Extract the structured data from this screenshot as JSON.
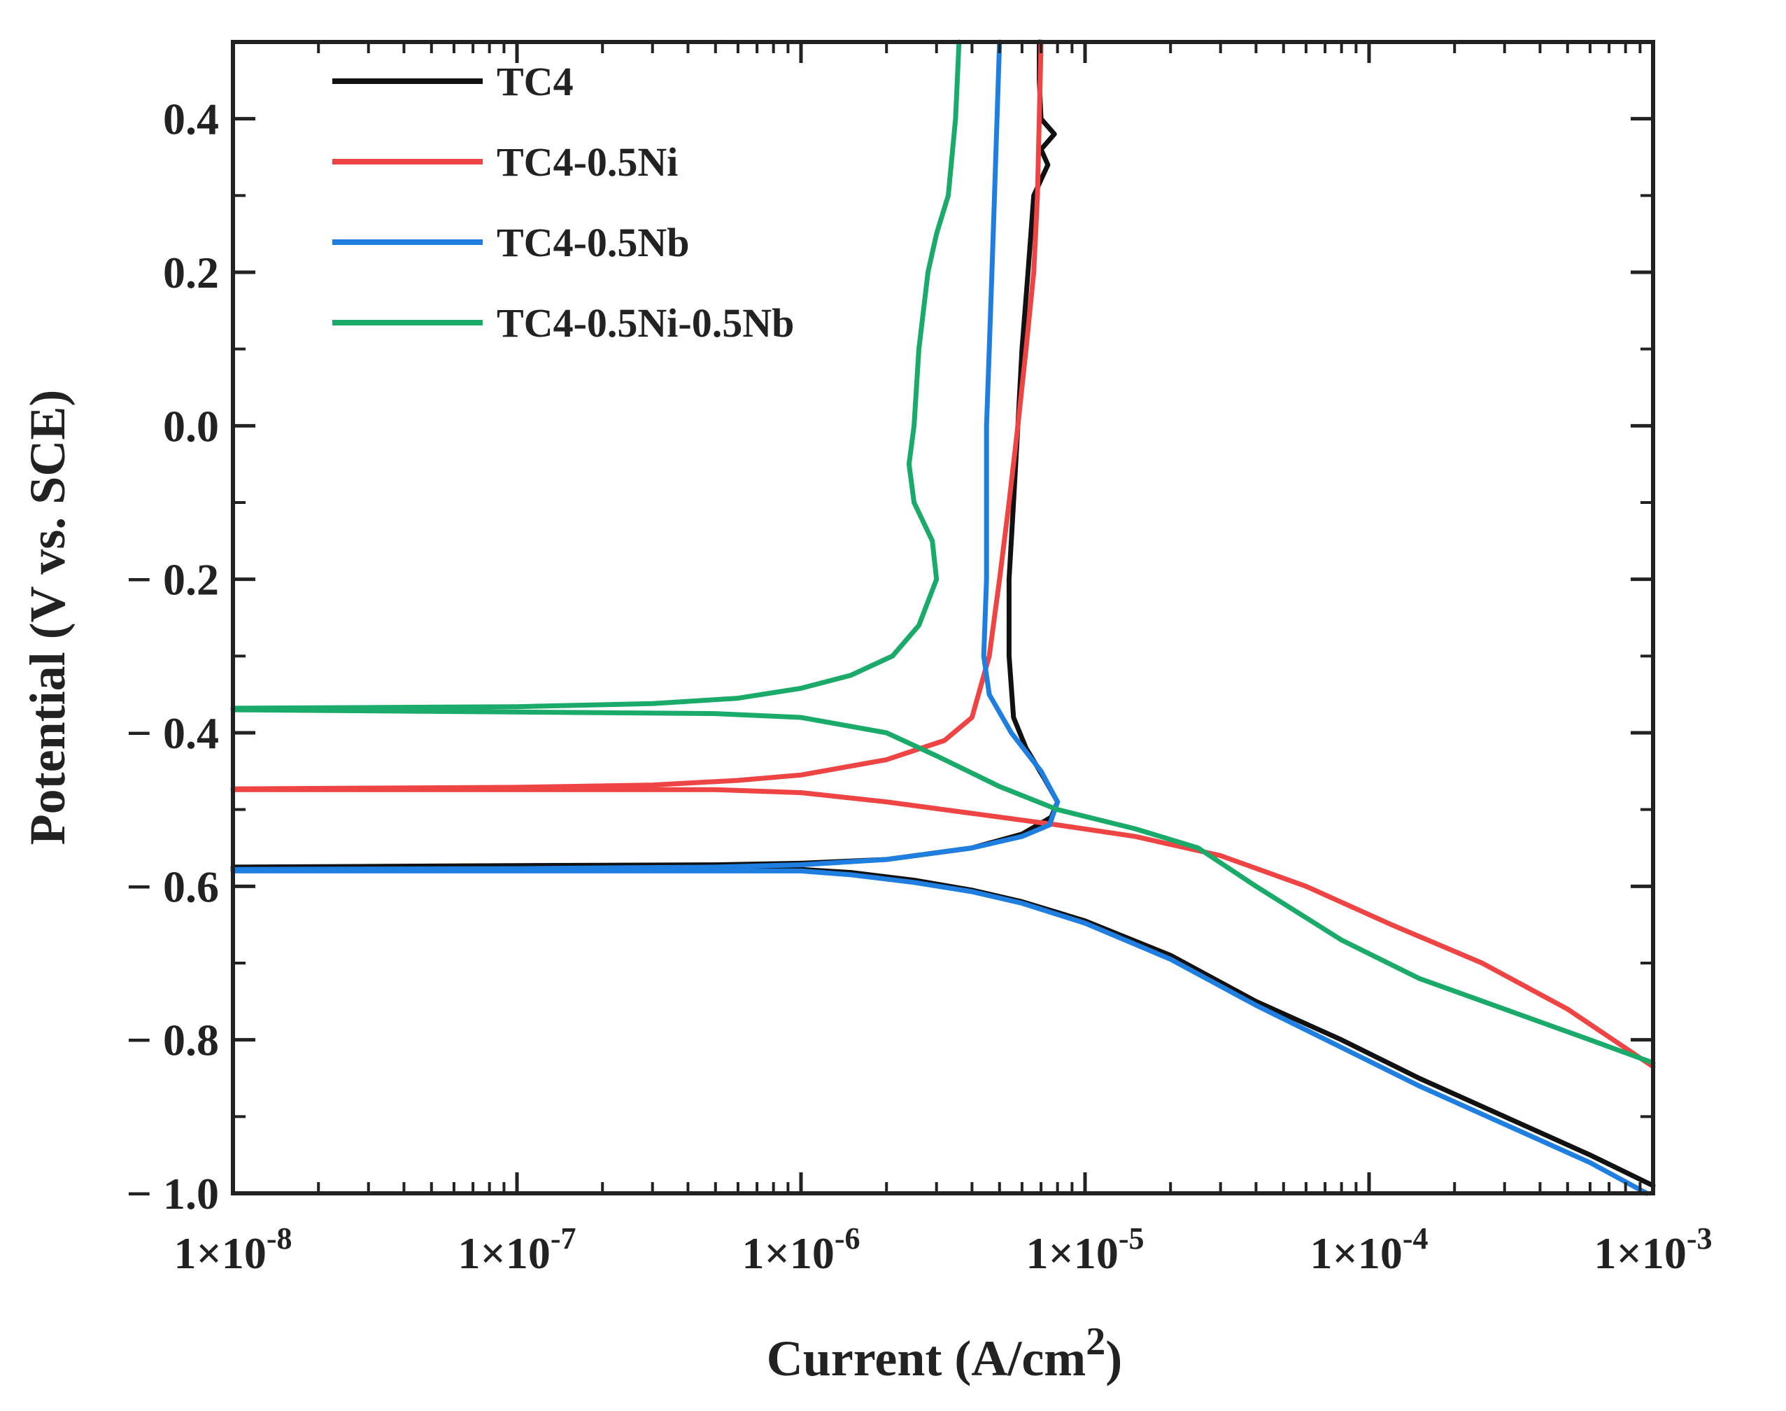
{
  "chart_data": {
    "type": "line",
    "title": "",
    "xlabel": "Current (A/cm",
    "xlabel_sup": "2",
    "xlabel_end": ")",
    "ylabel": "Potential (V vs. SCE)",
    "xscale": "log",
    "xlim": [
      1e-08,
      0.001
    ],
    "ylim": [
      -1.0,
      0.5
    ],
    "x_tick_values": [
      1e-08,
      1e-07,
      1e-06,
      1e-05,
      0.0001,
      0.001
    ],
    "x_tick_labels": [
      {
        "base": "1×10",
        "exp": "-8"
      },
      {
        "base": "1×10",
        "exp": "-7"
      },
      {
        "base": "1×10",
        "exp": "-6"
      },
      {
        "base": "1×10",
        "exp": "-5"
      },
      {
        "base": "1×10",
        "exp": "-4"
      },
      {
        "base": "1×10",
        "exp": "-3"
      }
    ],
    "y_tick_values": [
      0.4,
      0.2,
      0.0,
      -0.2,
      -0.4,
      -0.6,
      -0.8,
      -1.0
    ],
    "y_tick_labels": [
      "0.4",
      "0.2",
      "0.0",
      "− 0.2",
      "− 0.4",
      "− 0.6",
      "− 0.8",
      "− 1.0"
    ],
    "legend_position": "top-left",
    "series": [
      {
        "name": "TC4",
        "color": "#111111",
        "points": [
          [
            1e-08,
            -0.575
          ],
          [
            1e-07,
            -0.573
          ],
          [
            5e-07,
            -0.572
          ],
          [
            1e-06,
            -0.57
          ],
          [
            2e-06,
            -0.565
          ],
          [
            4e-06,
            -0.55
          ],
          [
            6e-06,
            -0.532
          ],
          [
            7.6e-06,
            -0.51
          ],
          [
            8e-06,
            -0.49
          ],
          [
            7.2e-06,
            -0.46
          ],
          [
            6.2e-06,
            -0.42
          ],
          [
            5.6e-06,
            -0.38
          ],
          [
            5.4e-06,
            -0.3
          ],
          [
            5.4e-06,
            -0.2
          ],
          [
            5.6e-06,
            -0.1
          ],
          [
            5.8e-06,
            0.0
          ],
          [
            6e-06,
            0.1
          ],
          [
            6.3e-06,
            0.2
          ],
          [
            6.6e-06,
            0.3
          ],
          [
            7.4e-06,
            0.34
          ],
          [
            7e-06,
            0.36
          ],
          [
            7.8e-06,
            0.38
          ],
          [
            7e-06,
            0.4
          ],
          [
            6.9e-06,
            0.45
          ],
          [
            6.9e-06,
            0.5
          ]
        ],
        "cathodic": [
          [
            1e-08,
            -0.578
          ],
          [
            5e-07,
            -0.578
          ],
          [
            1e-06,
            -0.578
          ],
          [
            1.5e-06,
            -0.582
          ],
          [
            2.5e-06,
            -0.592
          ],
          [
            4e-06,
            -0.605
          ],
          [
            6e-06,
            -0.62
          ],
          [
            1e-05,
            -0.645
          ],
          [
            2e-05,
            -0.69
          ],
          [
            4e-05,
            -0.75
          ],
          [
            8e-05,
            -0.8
          ],
          [
            0.00015,
            -0.85
          ],
          [
            0.0003,
            -0.9
          ],
          [
            0.0006,
            -0.95
          ],
          [
            0.001,
            -0.99
          ]
        ]
      },
      {
        "name": "TC4-0.5Ni",
        "color": "#ef4444",
        "points": [
          [
            1e-08,
            -0.473
          ],
          [
            1e-07,
            -0.471
          ],
          [
            3e-07,
            -0.468
          ],
          [
            6e-07,
            -0.462
          ],
          [
            1e-06,
            -0.455
          ],
          [
            2e-06,
            -0.435
          ],
          [
            3.2e-06,
            -0.41
          ],
          [
            4e-06,
            -0.38
          ],
          [
            4.6e-06,
            -0.3
          ],
          [
            5e-06,
            -0.2
          ],
          [
            5.4e-06,
            -0.1
          ],
          [
            5.8e-06,
            0.0
          ],
          [
            6.2e-06,
            0.1
          ],
          [
            6.6e-06,
            0.2
          ],
          [
            6.8e-06,
            0.3
          ],
          [
            6.9e-06,
            0.4
          ],
          [
            7e-06,
            0.5
          ]
        ],
        "cathodic": [
          [
            1e-08,
            -0.474
          ],
          [
            5e-07,
            -0.474
          ],
          [
            1e-06,
            -0.478
          ],
          [
            2e-06,
            -0.49
          ],
          [
            4e-06,
            -0.505
          ],
          [
            8e-06,
            -0.52
          ],
          [
            1.5e-05,
            -0.535
          ],
          [
            3e-05,
            -0.56
          ],
          [
            6e-05,
            -0.6
          ],
          [
            0.00012,
            -0.65
          ],
          [
            0.00025,
            -0.7
          ],
          [
            0.0005,
            -0.76
          ],
          [
            0.001,
            -0.835
          ]
        ]
      },
      {
        "name": "TC4-0.5Nb",
        "color": "#1f7fe0",
        "points": [
          [
            1e-08,
            -0.578
          ],
          [
            1e-07,
            -0.577
          ],
          [
            5e-07,
            -0.575
          ],
          [
            1e-06,
            -0.572
          ],
          [
            2e-06,
            -0.565
          ],
          [
            4e-06,
            -0.55
          ],
          [
            6e-06,
            -0.535
          ],
          [
            7.5e-06,
            -0.52
          ],
          [
            8e-06,
            -0.49
          ],
          [
            7e-06,
            -0.45
          ],
          [
            5.5e-06,
            -0.4
          ],
          [
            4.6e-06,
            -0.35
          ],
          [
            4.4e-06,
            -0.3
          ],
          [
            4.5e-06,
            -0.2
          ],
          [
            4.5e-06,
            -0.1
          ],
          [
            4.5e-06,
            0.0
          ],
          [
            4.6e-06,
            0.1
          ],
          [
            4.7e-06,
            0.2
          ],
          [
            4.8e-06,
            0.3
          ],
          [
            4.9e-06,
            0.4
          ],
          [
            5e-06,
            0.5
          ]
        ],
        "cathodic": [
          [
            1e-08,
            -0.58
          ],
          [
            5e-07,
            -0.58
          ],
          [
            1e-06,
            -0.58
          ],
          [
            1.5e-06,
            -0.585
          ],
          [
            2.5e-06,
            -0.595
          ],
          [
            4e-06,
            -0.607
          ],
          [
            6e-06,
            -0.622
          ],
          [
            1e-05,
            -0.648
          ],
          [
            2e-05,
            -0.695
          ],
          [
            4e-05,
            -0.755
          ],
          [
            8e-05,
            -0.81
          ],
          [
            0.00015,
            -0.86
          ],
          [
            0.0003,
            -0.91
          ],
          [
            0.0006,
            -0.96
          ],
          [
            0.00095,
            -1.0
          ]
        ]
      },
      {
        "name": "TC4-0.5Ni-0.5Nb",
        "color": "#1aaa6a",
        "points": [
          [
            1e-08,
            -0.368
          ],
          [
            1e-07,
            -0.366
          ],
          [
            3e-07,
            -0.362
          ],
          [
            6e-07,
            -0.355
          ],
          [
            1e-06,
            -0.342
          ],
          [
            1.5e-06,
            -0.325
          ],
          [
            2.1e-06,
            -0.3
          ],
          [
            2.6e-06,
            -0.26
          ],
          [
            3e-06,
            -0.2
          ],
          [
            2.9e-06,
            -0.15
          ],
          [
            2.5e-06,
            -0.1
          ],
          [
            2.4e-06,
            -0.05
          ],
          [
            2.5e-06,
            0.0
          ],
          [
            2.6e-06,
            0.1
          ],
          [
            2.8e-06,
            0.2
          ],
          [
            3e-06,
            0.25
          ],
          [
            3.3e-06,
            0.3
          ],
          [
            3.5e-06,
            0.4
          ],
          [
            3.6e-06,
            0.5
          ]
        ],
        "cathodic": [
          [
            1e-08,
            -0.37
          ],
          [
            5e-07,
            -0.375
          ],
          [
            1e-06,
            -0.38
          ],
          [
            2e-06,
            -0.4
          ],
          [
            3e-06,
            -0.43
          ],
          [
            5e-06,
            -0.47
          ],
          [
            8e-06,
            -0.5
          ],
          [
            1.5e-05,
            -0.525
          ],
          [
            2.5e-05,
            -0.55
          ],
          [
            4e-05,
            -0.6
          ],
          [
            8e-05,
            -0.67
          ],
          [
            0.00015,
            -0.72
          ],
          [
            0.0003,
            -0.76
          ],
          [
            0.0006,
            -0.8
          ],
          [
            0.001,
            -0.83
          ]
        ]
      }
    ]
  }
}
